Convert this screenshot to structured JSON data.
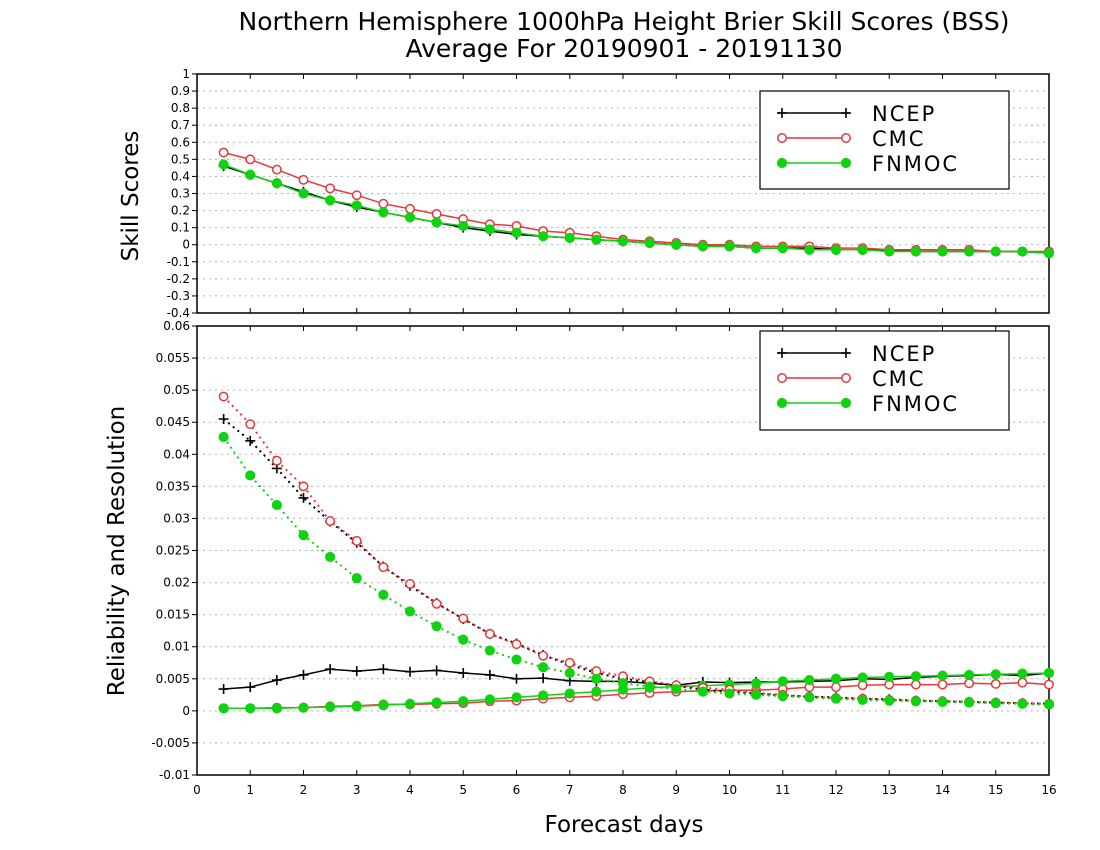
{
  "title": "Northern Hemisphere 1000hPa Height Brier Skill Scores (BSS)",
  "subtitle": "Average For 20190901 - 20191130",
  "colors": {
    "NCEP": "#000000",
    "CMC": "#e8373a",
    "FNMOC": "#11d211",
    "grid": "#b0b0b0"
  },
  "chart_data": [
    {
      "type": "line",
      "panel": "top",
      "ylabel": "Skill Scores",
      "xlabel": "",
      "xlim": [
        0,
        16
      ],
      "ylim": [
        -0.4,
        1
      ],
      "yticks": [
        "-0.4",
        "-0.3",
        "-0.2",
        "-0.1",
        "0",
        "0.1",
        "0.2",
        "0.3",
        "0.4",
        "0.5",
        "0.6",
        "0.7",
        "0.8",
        "0.9",
        "1"
      ],
      "grid": "horizontal dotted",
      "legend": "top-right",
      "x": [
        0.5,
        1,
        1.5,
        2,
        2.5,
        3,
        3.5,
        4,
        4.5,
        5,
        5.5,
        6,
        6.5,
        7,
        7.5,
        8,
        8.5,
        9,
        9.5,
        10,
        10.5,
        11,
        11.5,
        12,
        12.5,
        13,
        13.5,
        14,
        14.5,
        15,
        15.5,
        16
      ],
      "series": [
        {
          "name": "NCEP",
          "marker": "plus",
          "values": [
            0.46,
            0.41,
            0.36,
            0.31,
            0.26,
            0.22,
            0.19,
            0.16,
            0.13,
            0.1,
            0.08,
            0.06,
            0.05,
            0.04,
            0.03,
            0.02,
            0.01,
            0.0,
            -0.01,
            -0.01,
            -0.02,
            -0.02,
            -0.02,
            -0.03,
            -0.03,
            -0.03,
            -0.04,
            -0.04,
            -0.04,
            -0.04,
            -0.04,
            -0.05
          ]
        },
        {
          "name": "CMC",
          "marker": "open-circle",
          "values": [
            0.54,
            0.5,
            0.44,
            0.38,
            0.33,
            0.29,
            0.24,
            0.21,
            0.18,
            0.15,
            0.12,
            0.11,
            0.08,
            0.07,
            0.05,
            0.03,
            0.02,
            0.01,
            0.0,
            0.0,
            -0.01,
            -0.01,
            -0.01,
            -0.02,
            -0.02,
            -0.03,
            -0.03,
            -0.03,
            -0.03,
            -0.04,
            -0.04,
            -0.04
          ]
        },
        {
          "name": "FNMOC",
          "marker": "filled-circle",
          "values": [
            0.47,
            0.41,
            0.36,
            0.3,
            0.26,
            0.23,
            0.19,
            0.16,
            0.13,
            0.11,
            0.09,
            0.07,
            0.05,
            0.04,
            0.03,
            0.02,
            0.01,
            0.0,
            -0.01,
            -0.01,
            -0.02,
            -0.02,
            -0.03,
            -0.03,
            -0.03,
            -0.04,
            -0.04,
            -0.04,
            -0.04,
            -0.04,
            -0.04,
            -0.05
          ]
        }
      ]
    },
    {
      "type": "line",
      "panel": "bottom",
      "ylabel": "Reliability and Resolution",
      "xlabel": "Forecast days",
      "xlim": [
        0,
        16
      ],
      "ylim": [
        -0.01,
        0.06
      ],
      "xticks": [
        "0",
        "1",
        "2",
        "3",
        "4",
        "5",
        "6",
        "7",
        "8",
        "9",
        "10",
        "11",
        "12",
        "13",
        "14",
        "15",
        "16"
      ],
      "yticks": [
        "-0.01",
        "-0.005",
        "0",
        "0.005",
        "0.01",
        "0.015",
        "0.02",
        "0.025",
        "0.03",
        "0.035",
        "0.04",
        "0.045",
        "0.05",
        "0.055",
        "0.06"
      ],
      "grid": "horizontal dotted",
      "legend": "top-right",
      "x": [
        0.5,
        1,
        1.5,
        2,
        2.5,
        3,
        3.5,
        4,
        4.5,
        5,
        5.5,
        6,
        6.5,
        7,
        7.5,
        8,
        8.5,
        9,
        9.5,
        10,
        10.5,
        11,
        11.5,
        12,
        12.5,
        13,
        13.5,
        14,
        14.5,
        15,
        15.5,
        16
      ],
      "series": [
        {
          "name": "NCEP",
          "kind": "reliability",
          "style": "solid",
          "marker": "plus",
          "values": [
            0.0034,
            0.0037,
            0.0048,
            0.0056,
            0.0065,
            0.0062,
            0.0065,
            0.0061,
            0.0063,
            0.0059,
            0.0056,
            0.005,
            0.0051,
            0.0047,
            0.0046,
            0.0046,
            0.0043,
            0.004,
            0.0045,
            0.0044,
            0.0045,
            0.0045,
            0.0046,
            0.0047,
            0.005,
            0.0049,
            0.0052,
            0.0054,
            0.0055,
            0.0057,
            0.0055,
            0.0059
          ]
        },
        {
          "name": "CMC",
          "kind": "reliability",
          "style": "solid",
          "marker": "open-circle",
          "values": [
            0.0004,
            0.0004,
            0.0005,
            0.0005,
            0.0007,
            0.0008,
            0.001,
            0.001,
            0.0011,
            0.0012,
            0.0015,
            0.0016,
            0.0019,
            0.0021,
            0.0023,
            0.0026,
            0.0028,
            0.003,
            0.0031,
            0.0032,
            0.0032,
            0.0034,
            0.0037,
            0.0037,
            0.004,
            0.0041,
            0.0041,
            0.0041,
            0.0043,
            0.0042,
            0.0044,
            0.0041
          ]
        },
        {
          "name": "FNMOC",
          "kind": "reliability",
          "style": "solid",
          "marker": "filled-circle",
          "values": [
            0.0004,
            0.0004,
            0.0004,
            0.0005,
            0.0006,
            0.0007,
            0.0009,
            0.0011,
            0.0013,
            0.0015,
            0.0018,
            0.0021,
            0.0024,
            0.0027,
            0.003,
            0.0033,
            0.0036,
            0.0038,
            0.0039,
            0.0041,
            0.0043,
            0.0046,
            0.0048,
            0.005,
            0.0052,
            0.0053,
            0.0054,
            0.0055,
            0.0056,
            0.0057,
            0.0058,
            0.0059
          ]
        },
        {
          "name": "NCEP",
          "kind": "resolution",
          "style": "dotted",
          "marker": "plus",
          "values": [
            0.0455,
            0.0421,
            0.0378,
            0.0332,
            0.0295,
            0.0262,
            0.0225,
            0.0195,
            0.0168,
            0.0143,
            0.012,
            0.0105,
            0.0087,
            0.0072,
            0.0059,
            0.005,
            0.0045,
            0.0039,
            0.0033,
            0.003,
            0.0027,
            0.0024,
            0.0022,
            0.0021,
            0.0019,
            0.0018,
            0.0016,
            0.0015,
            0.0014,
            0.0013,
            0.0012,
            0.0011
          ]
        },
        {
          "name": "CMC",
          "kind": "resolution",
          "style": "dotted",
          "marker": "open-circle",
          "values": [
            0.049,
            0.0447,
            0.039,
            0.035,
            0.0296,
            0.0265,
            0.0224,
            0.0198,
            0.0167,
            0.0144,
            0.012,
            0.0104,
            0.0086,
            0.0075,
            0.0062,
            0.0054,
            0.0046,
            0.004,
            0.0036,
            0.0033,
            0.0028,
            0.0025,
            0.0022,
            0.002,
            0.0019,
            0.0017,
            0.0016,
            0.0015,
            0.0014,
            0.0013,
            0.0012,
            0.0011
          ]
        },
        {
          "name": "FNMOC",
          "kind": "resolution",
          "style": "dotted",
          "marker": "filled-circle",
          "values": [
            0.0427,
            0.0367,
            0.0321,
            0.0274,
            0.024,
            0.0207,
            0.0181,
            0.0155,
            0.0132,
            0.0111,
            0.0094,
            0.008,
            0.0068,
            0.0059,
            0.005,
            0.0043,
            0.0038,
            0.0034,
            0.003,
            0.0027,
            0.0025,
            0.0023,
            0.0021,
            0.0019,
            0.0017,
            0.0016,
            0.0015,
            0.0014,
            0.0013,
            0.0012,
            0.0011,
            0.001
          ]
        }
      ]
    }
  ],
  "legend": [
    "NCEP",
    "CMC",
    "FNMOC"
  ]
}
